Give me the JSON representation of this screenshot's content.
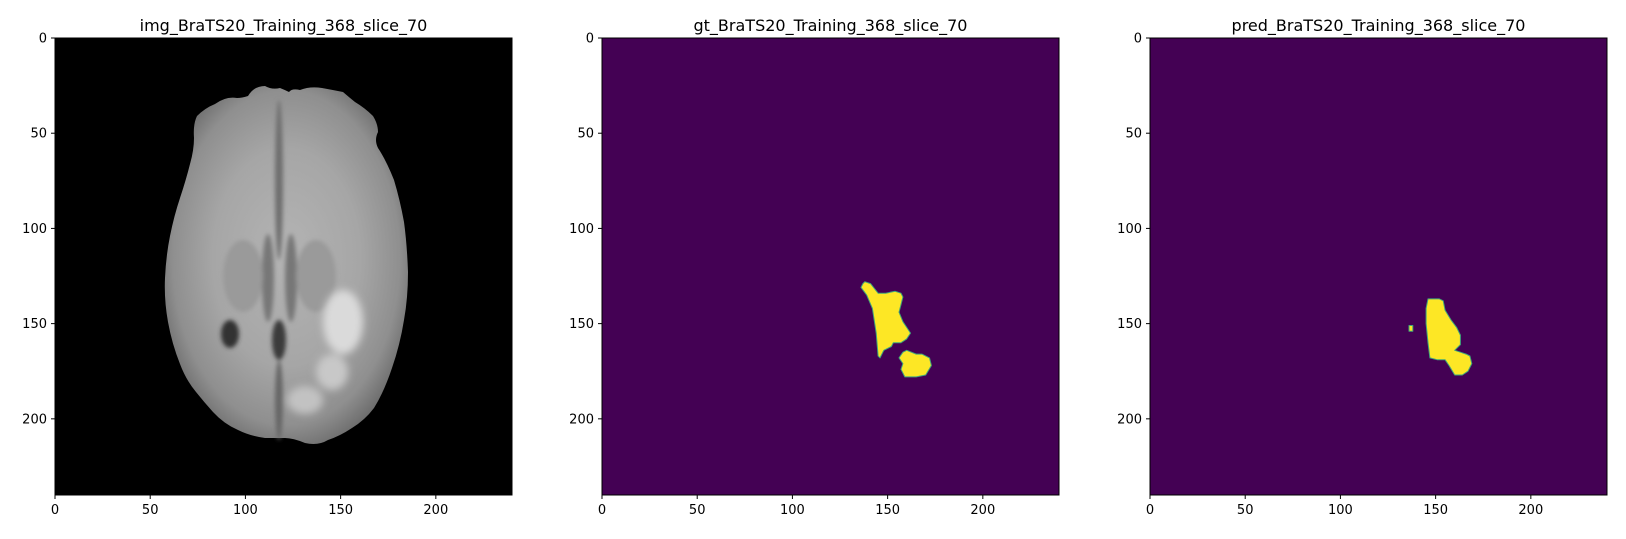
{
  "chart_data": [
    {
      "type": "heatmap",
      "title": "img_BraTS20_Training_368_slice_70",
      "content": "MRI brain slice (grayscale)",
      "colormap": "gray",
      "xlim": [
        0,
        240
      ],
      "ylim": [
        240,
        0
      ],
      "xticks": [
        0,
        50,
        100,
        150,
        200
      ],
      "yticks": [
        0,
        50,
        100,
        150,
        200
      ],
      "xlabel": "",
      "ylabel": ""
    },
    {
      "type": "heatmap",
      "title": "gt_BraTS20_Training_368_slice_70",
      "content": "ground-truth segmentation mask",
      "colormap": "viridis",
      "background_color": "#440154",
      "mask_color": "#fde725",
      "xlim": [
        0,
        240
      ],
      "ylim": [
        240,
        0
      ],
      "xticks": [
        0,
        50,
        100,
        150,
        200
      ],
      "yticks": [
        0,
        50,
        100,
        150,
        200
      ],
      "xlabel": "",
      "ylabel": "",
      "regions": [
        {
          "points": [
            [
              137,
              129
            ],
            [
              138,
              128
            ],
            [
              141,
              129
            ],
            [
              145,
              134
            ],
            [
              149,
              134
            ],
            [
              154,
              133
            ],
            [
              157,
              134
            ],
            [
              158,
              136
            ],
            [
              157,
              140
            ],
            [
              156,
              144
            ],
            [
              158,
              149
            ],
            [
              160,
              152
            ],
            [
              162,
              155
            ],
            [
              160,
              158
            ],
            [
              157,
              160
            ],
            [
              153,
              160
            ],
            [
              152,
              162
            ],
            [
              148,
              164
            ],
            [
              146,
              168
            ],
            [
              145,
              167
            ],
            [
              144,
              155
            ],
            [
              142,
              142
            ],
            [
              139,
              135
            ],
            [
              136,
              131
            ]
          ]
        },
        {
          "points": [
            [
              160,
              164
            ],
            [
              165,
              166
            ],
            [
              168,
              166
            ],
            [
              172,
              168
            ],
            [
              173,
              172
            ],
            [
              170,
              177
            ],
            [
              165,
              178
            ],
            [
              159,
              178
            ],
            [
              157,
              174
            ],
            [
              158,
              171
            ],
            [
              156,
              168
            ],
            [
              158,
              165
            ]
          ]
        }
      ]
    },
    {
      "type": "heatmap",
      "title": "pred_BraTS20_Training_368_slice_70",
      "content": "predicted segmentation mask",
      "colormap": "viridis",
      "background_color": "#440154",
      "mask_color": "#fde725",
      "xlim": [
        0,
        240
      ],
      "ylim": [
        240,
        0
      ],
      "xticks": [
        0,
        50,
        100,
        150,
        200
      ],
      "yticks": [
        0,
        50,
        100,
        150,
        200
      ],
      "xlabel": "",
      "ylabel": "",
      "regions": [
        {
          "points": [
            [
              146,
              137
            ],
            [
              152,
              137
            ],
            [
              154,
              138
            ],
            [
              155,
              143
            ],
            [
              158,
              148
            ],
            [
              161,
              152
            ],
            [
              163,
              156
            ],
            [
              163,
              161
            ],
            [
              160,
              164
            ],
            [
              163,
              165
            ],
            [
              166,
              166
            ],
            [
              168,
              167
            ],
            [
              169,
              171
            ],
            [
              167,
              175
            ],
            [
              164,
              177
            ],
            [
              160,
              177
            ],
            [
              157,
              172
            ],
            [
              155,
              169
            ],
            [
              151,
              169
            ],
            [
              147,
              168
            ],
            [
              146,
              160
            ],
            [
              145,
              150
            ],
            [
              145,
              142
            ]
          ]
        },
        {
          "points": [
            [
              136,
              151
            ],
            [
              138,
              151
            ],
            [
              138,
              154
            ],
            [
              136,
              154
            ]
          ]
        }
      ]
    }
  ]
}
